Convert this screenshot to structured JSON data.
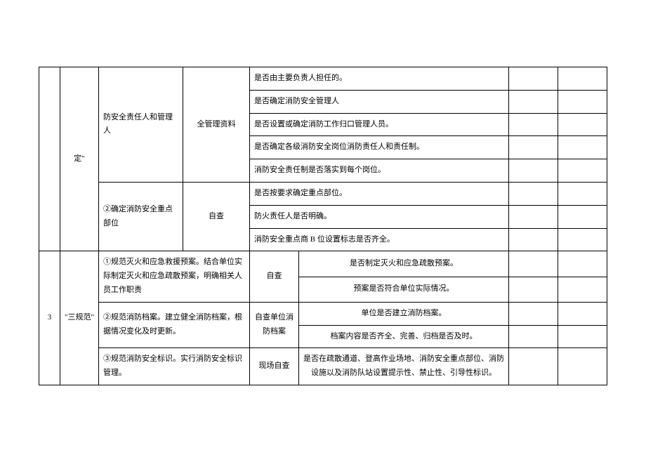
{
  "section2": {
    "name": "定\"",
    "item1": {
      "label": "防安全责任人和管理人",
      "method": "全管理资料",
      "questions": [
        "是否由主要负责人担任的。",
        "是否确定消防安全管理人",
        "是否设置或确定消防工作归口管理人员。",
        "是否确定各级消防安全岗位消防责任人和责任制。",
        "消防安全责任制是否落实到每个岗位。"
      ]
    },
    "item2": {
      "label": "②确定消防安全重点部位",
      "method": "自查",
      "questions": [
        "是否按要求确定重点部位。",
        "防火责任人是否明确。",
        "消防安全重点商 B 位设置标志是否齐全。"
      ]
    }
  },
  "section3": {
    "index": "3",
    "name": "\"三规范\"",
    "item1": {
      "label": "①规范灭火和应急救援预案。结合单位实际制定灭火和应急疏散预案，明确相关人员工作职责",
      "method": "自查",
      "questions": [
        "是否制定灭火和应急疏散预案。",
        "预案是否符合单位实际情况。"
      ]
    },
    "item2": {
      "label": "②规范消防档案。建立健全消防档案，根据情况变化及时更新。",
      "method": "自查单位消防档案",
      "questions": [
        "单位是否建立消防档案。",
        "档案内容是否齐全、完善、归档是否及时。"
      ]
    },
    "item3": {
      "label": "③规范消防安全标识。实行消防安全标识管理。",
      "method": "现场自查",
      "question": "是否在疏散通道、登高作业场地、消防安全重点部位、消防设施以及消防队站设置提示性、禁止性、引导性标识。"
    }
  }
}
